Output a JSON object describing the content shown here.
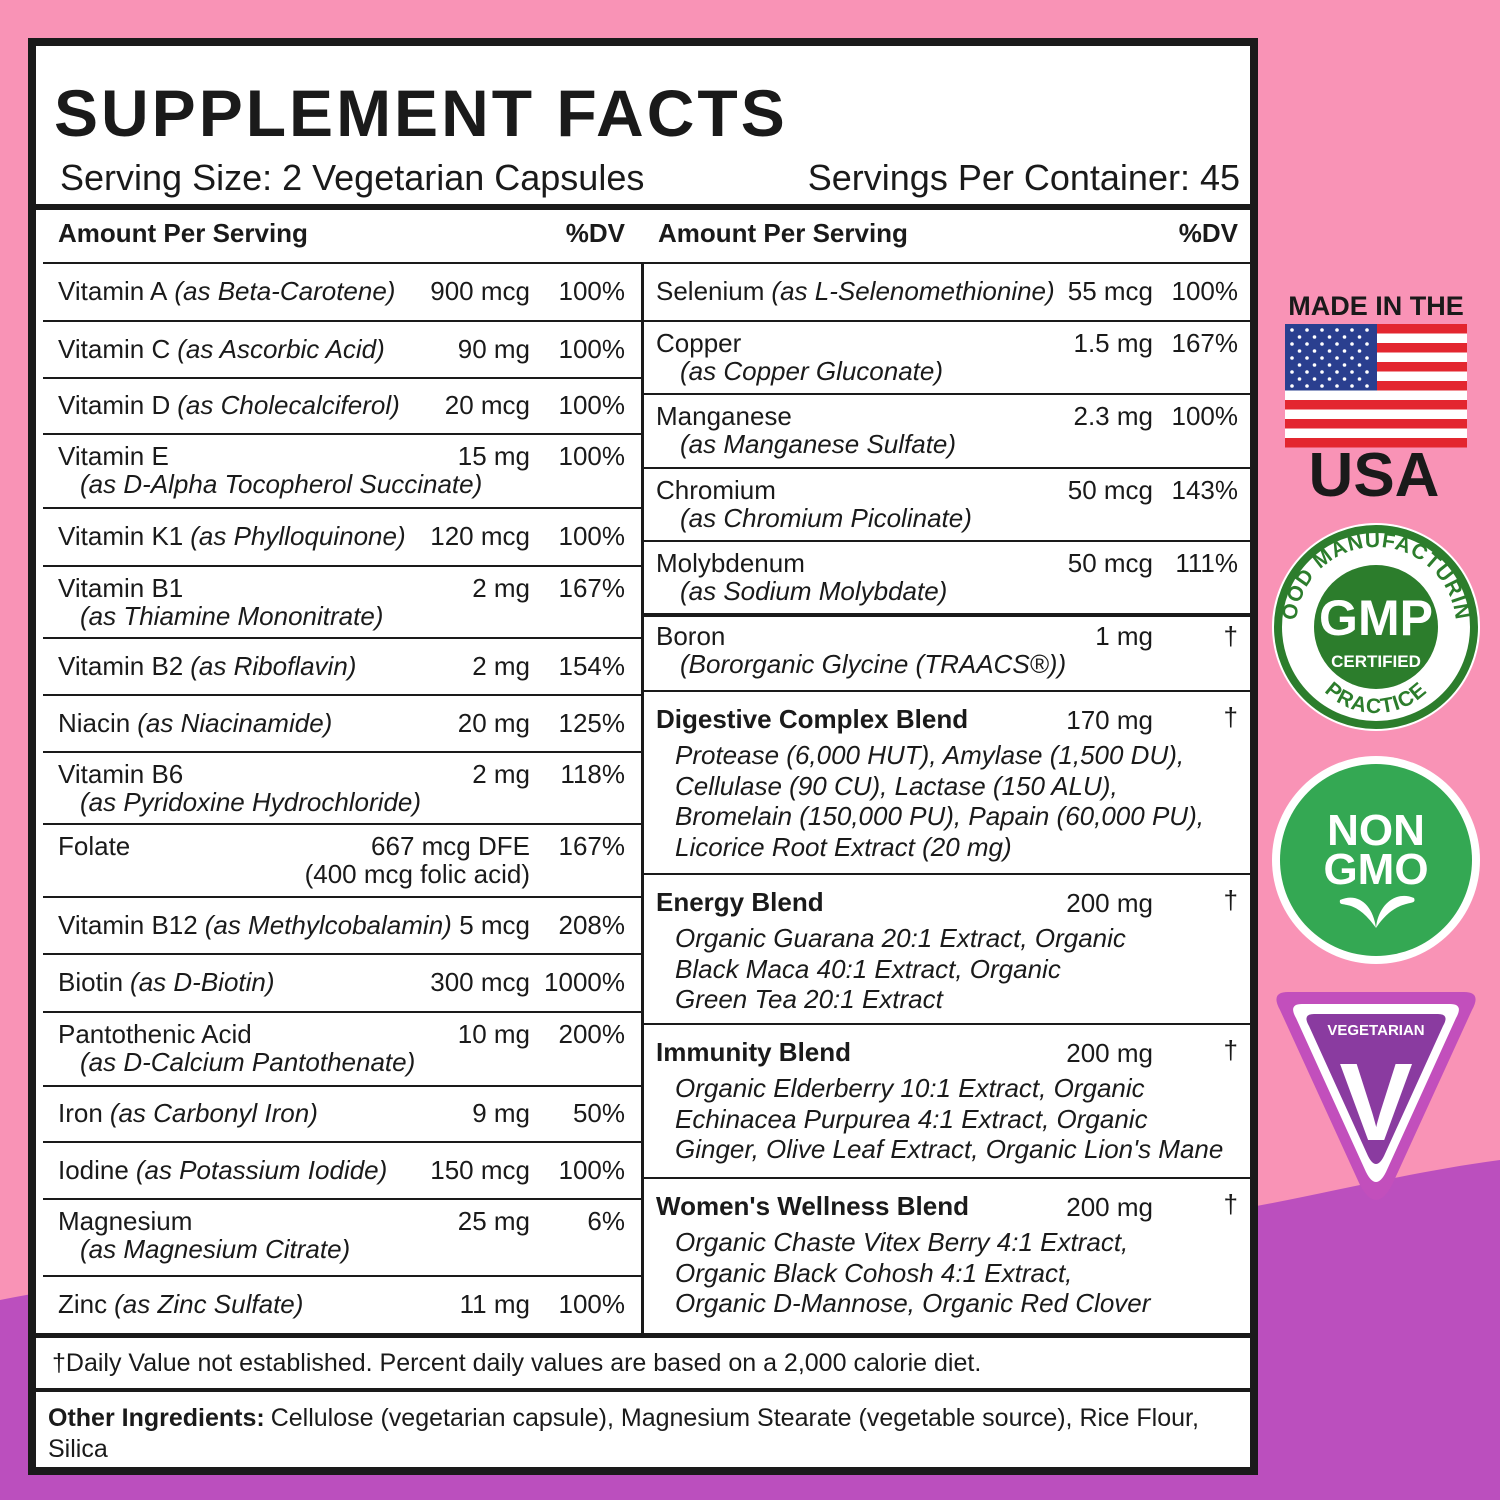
{
  "header": {
    "title": "SUPPLEMENT FACTS",
    "serving_size": "Serving Size: 2 Vegetarian Capsules",
    "servings_per_container": "Servings Per Container: 45"
  },
  "left": {
    "col_header": [
      "Amount Per Serving",
      "%DV"
    ],
    "rows": [
      {
        "name": "Vitamin A",
        "source": "(as Beta-Carotene)",
        "amount": "900 mcg",
        "dv": "100%"
      },
      {
        "name": "Vitamin C",
        "source": "(as Ascorbic Acid)",
        "amount": "90 mg",
        "dv": "100%"
      },
      {
        "name": "Vitamin D",
        "source": "(as Cholecalciferol)",
        "amount": "20 mcg",
        "dv": "100%"
      },
      {
        "name": "Vitamin E",
        "source": "(as D-Alpha Tocopherol Succinate)",
        "amount": "15 mg",
        "dv": "100%"
      },
      {
        "name": "Vitamin K1",
        "source": "(as Phylloquinone)",
        "amount": "120 mcg",
        "dv": "100%"
      },
      {
        "name": "Vitamin B1",
        "source": "(as Thiamine Mononitrate)",
        "amount": "2 mg",
        "dv": "167%"
      },
      {
        "name": "Vitamin B2",
        "source": "(as Riboflavin)",
        "amount": "2 mg",
        "dv": "154%"
      },
      {
        "name": "Niacin",
        "source": "(as Niacinamide)",
        "amount": "20 mg",
        "dv": "125%"
      },
      {
        "name": "Vitamin B6",
        "source": "(as Pyridoxine Hydrochloride)",
        "amount": "2 mg",
        "dv": "118%"
      },
      {
        "name": "Folate",
        "amount": "667 mcg DFE",
        "amount_note": "(400 mcg folic acid)",
        "dv": "167%"
      },
      {
        "name": "Vitamin B12",
        "source": "(as Methylcobalamin)",
        "amount": "5 mcg",
        "dv": "208%"
      },
      {
        "name": "Biotin",
        "source": "(as D-Biotin)",
        "amount": "300 mcg",
        "dv": "1000%"
      },
      {
        "name": "Pantothenic Acid",
        "source": "(as D-Calcium Pantothenate)",
        "amount": "10 mg",
        "dv": "200%"
      },
      {
        "name": "Iron",
        "source": "(as Carbonyl Iron)",
        "amount": "9 mg",
        "dv": "50%"
      },
      {
        "name": "Iodine",
        "source": "(as Potassium Iodide)",
        "amount": "150 mcg",
        "dv": "100%"
      },
      {
        "name": "Magnesium",
        "source": "(as Magnesium Citrate)",
        "amount": "25 mg",
        "dv": "6%"
      },
      {
        "name": "Zinc",
        "source": "(as Zinc Sulfate)",
        "amount": "11 mg",
        "dv": "100%"
      }
    ]
  },
  "right": {
    "col_header": [
      "Amount Per Serving",
      "%DV"
    ],
    "rows": [
      {
        "name": "Selenium",
        "source": "(as L-Selenomethionine)",
        "amount": "55 mcg",
        "dv": "100%"
      },
      {
        "name": "Copper",
        "source": "(as Copper Gluconate)",
        "amount": "1.5 mg",
        "dv": "167%"
      },
      {
        "name": "Manganese",
        "source": "(as Manganese Sulfate)",
        "amount": "2.3 mg",
        "dv": "100%"
      },
      {
        "name": "Chromium",
        "source": "(as Chromium Picolinate)",
        "amount": "50 mcg",
        "dv": "143%"
      },
      {
        "name": "Molybdenum",
        "source": "(as Sodium Molybdate)",
        "amount": "50 mcg",
        "dv": "111%"
      },
      {
        "name": "Boron",
        "source": "(Bororganic Glycine (TRAACS®))",
        "amount": "1 mg",
        "dv": "†"
      }
    ],
    "blends": [
      {
        "name": "Digestive Complex Blend",
        "amount": "170 mg",
        "dv": "†",
        "ingredients": [
          "Protease (6,000 HUT), Amylase (1,500 DU),",
          "Cellulase (90 CU), Lactase (150 ALU),",
          "Bromelain (150,000 PU), Papain (60,000 PU),",
          "Licorice Root Extract (20 mg)"
        ]
      },
      {
        "name": "Energy Blend",
        "amount": "200 mg",
        "dv": "†",
        "ingredients": [
          "Organic Guarana 20:1 Extract, Organic",
          "Black Maca 40:1 Extract, Organic",
          "Green Tea 20:1 Extract"
        ]
      },
      {
        "name": "Immunity Blend",
        "amount": "200 mg",
        "dv": "†",
        "ingredients": [
          "Organic Elderberry 10:1 Extract, Organic",
          "Echinacea Purpurea 4:1 Extract, Organic",
          "Ginger, Olive Leaf Extract, Organic Lion's Mane"
        ]
      },
      {
        "name": "Women's Wellness Blend",
        "amount": "200 mg",
        "dv": "†",
        "ingredients": [
          "Organic Chaste Vitex Berry 4:1 Extract,",
          "Organic Black Cohosh 4:1 Extract,",
          "Organic D-Mannose, Organic Red Clover"
        ]
      }
    ]
  },
  "footnote": "†Daily Value not established. Percent daily values are based on a 2,000 calorie diet.",
  "other_ingredients": {
    "label": "Other Ingredients:",
    "text": "Cellulose (vegetarian capsule), Magnesium Stearate (vegetable source), Rice Flour, Silica"
  },
  "badges": {
    "made_in": "MADE IN THE",
    "usa": "USA",
    "gmp_ring_top": "GOOD MANUFACTURING",
    "gmp": "GMP",
    "gmp_certified": "CERTIFIED",
    "gmp_ring_bottom": "PRACTICE",
    "non": "NON",
    "gmo": "GMO",
    "vegetarian": "VEGETARIAN",
    "v": "V"
  }
}
